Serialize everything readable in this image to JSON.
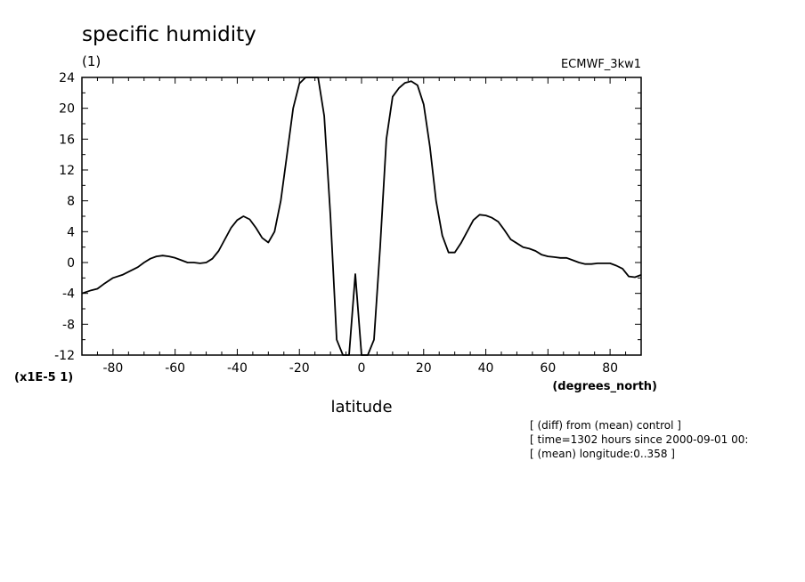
{
  "chart_data": {
    "type": "line",
    "title": "specific humidity",
    "subtitle": "(1)",
    "source_label": "ECMWF_3kw1",
    "xlabel": "latitude",
    "x_units": "(degrees_north)",
    "y_scale_label": "(x1E-5 1)",
    "xlim": [
      -90,
      90
    ],
    "ylim": [
      -12,
      24
    ],
    "x_ticks": [
      -80,
      -60,
      -40,
      -20,
      0,
      20,
      40,
      60,
      80
    ],
    "y_ticks": [
      -12,
      -8,
      -4,
      0,
      4,
      8,
      12,
      16,
      20,
      24
    ],
    "grid": false,
    "series": [
      {
        "x": [
          -90,
          -87,
          -85,
          -83,
          -80,
          -77,
          -75,
          -72,
          -70,
          -68,
          -66,
          -64,
          -62,
          -60,
          -58,
          -56,
          -54,
          -52,
          -50,
          -48,
          -46,
          -44,
          -42,
          -40,
          -38,
          -36,
          -34,
          -32,
          -30,
          -28,
          -26,
          -24,
          -22,
          -20,
          -18,
          -16,
          -14,
          -12,
          -10,
          -8,
          -6,
          -4,
          -2,
          0,
          2,
          4,
          6,
          8,
          10,
          12,
          14,
          16,
          18,
          20,
          22,
          24,
          26,
          28,
          30,
          32,
          34,
          36,
          38,
          40,
          42,
          44,
          46,
          48,
          50,
          52,
          54,
          56,
          58,
          60,
          62,
          64,
          66,
          68,
          70,
          72,
          74,
          76,
          78,
          80,
          82,
          84,
          86,
          88,
          90
        ],
        "y": [
          -4.0,
          -3.6,
          -3.4,
          -2.8,
          -2.0,
          -1.6,
          -1.2,
          -0.6,
          0.0,
          0.5,
          0.8,
          0.9,
          0.8,
          0.6,
          0.3,
          0.0,
          0.0,
          -0.1,
          0.0,
          0.5,
          1.5,
          3.0,
          4.5,
          5.5,
          6.0,
          5.6,
          4.5,
          3.2,
          2.6,
          4.0,
          8.0,
          14.0,
          20.0,
          23.2,
          24.0,
          24.0,
          24.0,
          19.0,
          6.0,
          -10.0,
          -12.0,
          -12.0,
          -1.5,
          -12.0,
          -12.0,
          -10.0,
          2.0,
          16.0,
          21.5,
          22.6,
          23.3,
          23.5,
          23.0,
          20.5,
          15.0,
          8.0,
          3.5,
          1.3,
          1.3,
          2.5,
          4.0,
          5.5,
          6.2,
          6.1,
          5.8,
          5.3,
          4.2,
          3.0,
          2.5,
          2.0,
          1.8,
          1.5,
          1.0,
          0.8,
          0.7,
          0.6,
          0.6,
          0.3,
          0.0,
          -0.2,
          -0.2,
          -0.1,
          -0.1,
          -0.1,
          -0.4,
          -0.8,
          -1.8,
          -1.9,
          -1.6
        ]
      }
    ]
  },
  "footer_notes": [
    "[ (diff) from (mean) control ]",
    "[ time=1302 hours since 2000-09-01 00:",
    "[ (mean) longitude:0..358 ]"
  ]
}
